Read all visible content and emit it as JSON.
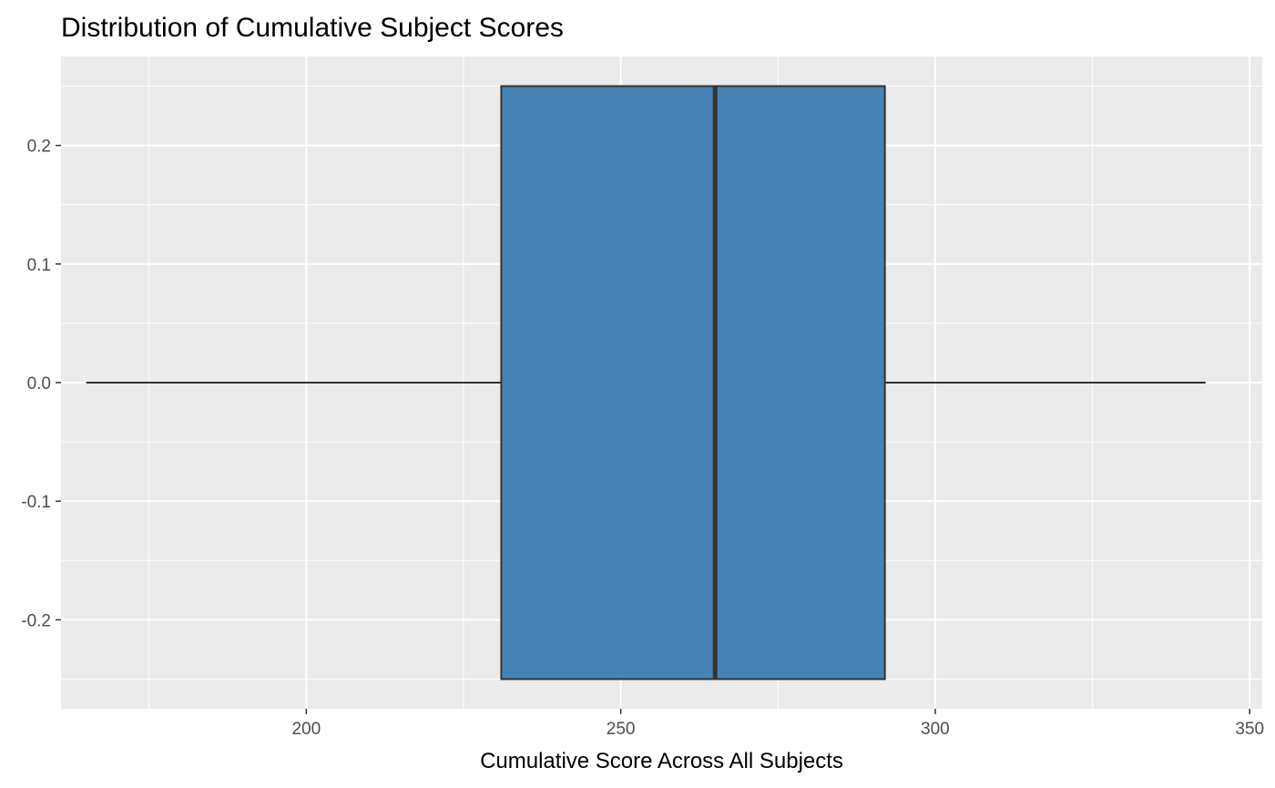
{
  "chart_data": {
    "type": "boxplot",
    "title": "Distribution of Cumulative Subject Scores",
    "xlabel": "Cumulative Score Across All Subjects",
    "ylabel": "",
    "xlim": [
      161,
      352
    ],
    "ylim": [
      -0.25,
      0.25
    ],
    "x_ticks": [
      200,
      250,
      300,
      350
    ],
    "x_tick_labels": [
      "200",
      "250",
      "300",
      "350"
    ],
    "y_ticks": [
      0.2,
      0.1,
      0.0,
      -0.1,
      -0.2
    ],
    "y_tick_labels": [
      "0.2",
      "0.1",
      "0.0",
      "-0.1",
      "-0.2"
    ],
    "box": {
      "whisker_low": 165,
      "q1": 231,
      "median": 265,
      "q3": 292,
      "whisker_high": 343,
      "y_center": 0.0,
      "half_width": 0.25
    },
    "grid": true,
    "panel_background": "#ebebeb",
    "gridline_color": "#ffffff",
    "box_fill": "#4682b4",
    "box_stroke": "#333333"
  }
}
